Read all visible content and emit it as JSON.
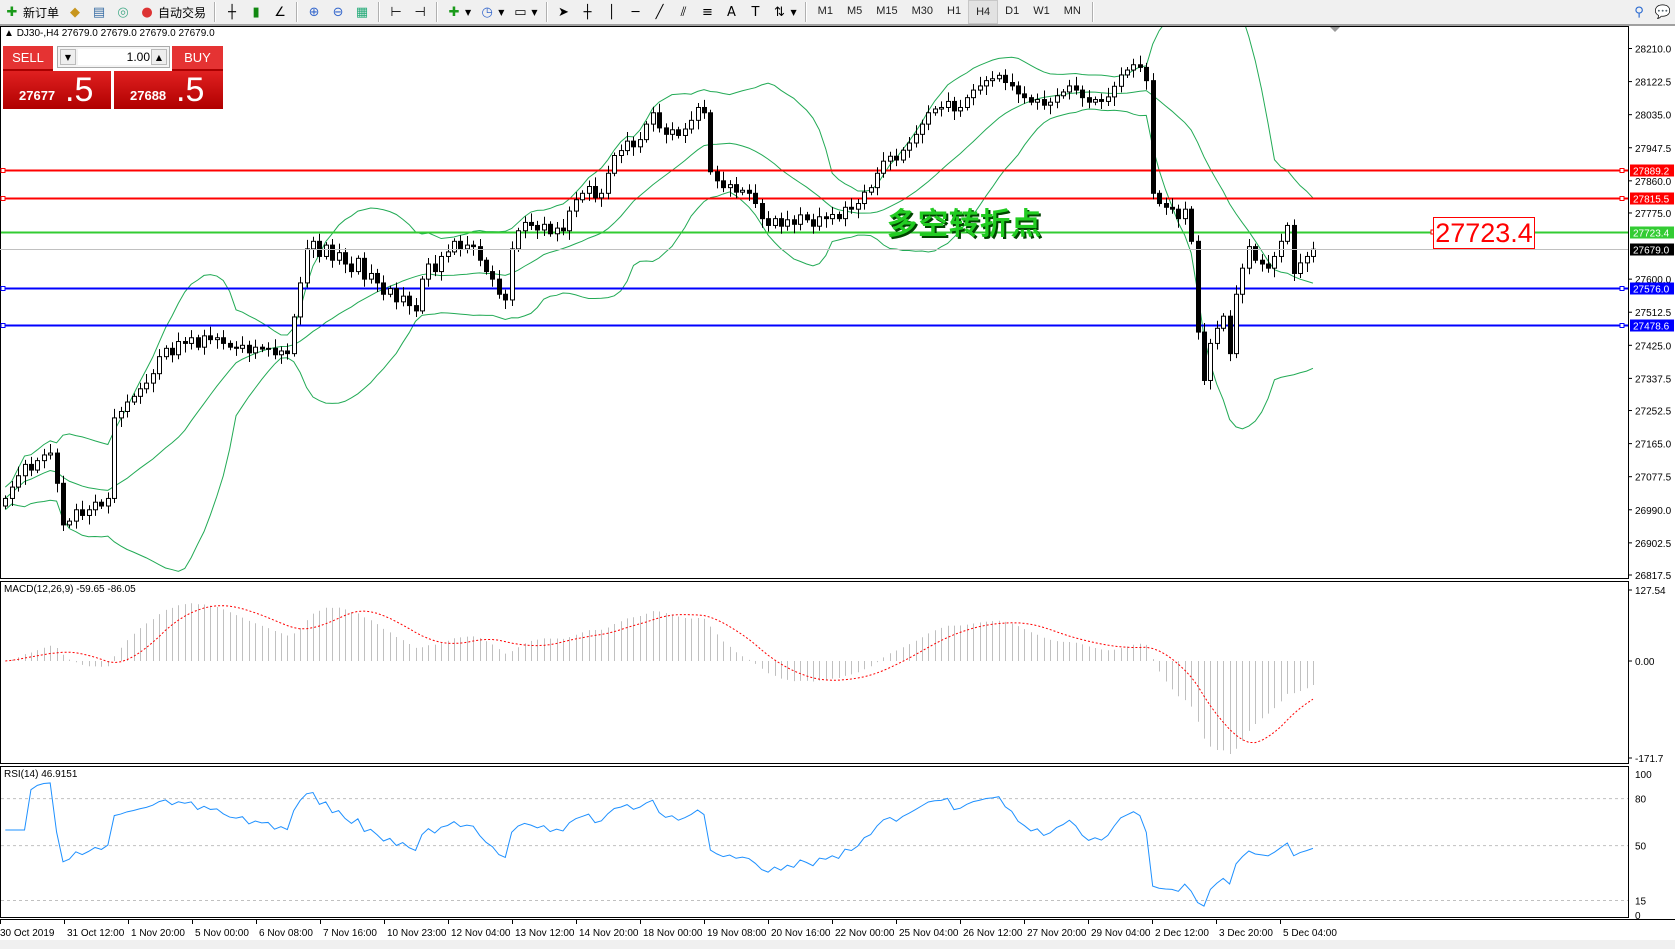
{
  "toolbar": {
    "new_order": "新订单",
    "auto_trading": "自动交易",
    "timeframes": [
      "M1",
      "M5",
      "M15",
      "M30",
      "H1",
      "H4",
      "D1",
      "W1",
      "MN"
    ],
    "active_timeframe": "H4"
  },
  "chart_title": "DJ30-,H4  27679.0 27679.0 27679.0 27679.0",
  "trade_panel": {
    "sell_label": "SELL",
    "buy_label": "BUY",
    "lot": "1.00",
    "sell_price_main": "27677",
    "sell_price_frac": ".5",
    "buy_price_main": "27688",
    "buy_price_frac": ".5"
  },
  "annotation": "多空转折点",
  "price_label_box": "27723.4",
  "colors": {
    "up": "#ffffff",
    "down": "#000000",
    "bands": "#22aa55",
    "red_line": "#ff0000",
    "blue_line": "#0000ff",
    "green_line": "#33cc33",
    "current": "#c0c0c0",
    "rsi": "#1e90ff",
    "macd_hist": "#c0c0c0",
    "macd_signal": "#ff0000"
  },
  "chart_data": {
    "type": "candlestick",
    "symbol": "DJ30-",
    "timeframe": "H4",
    "y_ticks": [
      "28210.0",
      "28122.5",
      "28035.0",
      "27947.5",
      "27860.0",
      "27775.0",
      "27600.0",
      "27512.5",
      "27425.0",
      "27337.5",
      "27252.5",
      "27165.0",
      "27077.5",
      "26990.0",
      "26902.5",
      "26817.5"
    ],
    "ylim": [
      26817.5,
      28210.0
    ],
    "x_labels": [
      "30 Oct 2019",
      "31 Oct 12:00",
      "1 Nov 20:00",
      "5 Nov 00:00",
      "6 Nov 08:00",
      "7 Nov 16:00",
      "10 Nov 23:00",
      "12 Nov 04:00",
      "13 Nov 12:00",
      "14 Nov 20:00",
      "18 Nov 00:00",
      "19 Nov 08:00",
      "20 Nov 16:00",
      "22 Nov 00:00",
      "25 Nov 04:00",
      "26 Nov 12:00",
      "27 Nov 20:00",
      "29 Nov 04:00",
      "2 Dec 12:00",
      "3 Dec 20:00",
      "5 Dec 04:00"
    ],
    "closes": [
      27020,
      27050,
      27080,
      27110,
      27095,
      27120,
      27135,
      27140,
      27060,
      26950,
      26960,
      26990,
      26975,
      26990,
      27010,
      27000,
      27020,
      27233,
      27250,
      27275,
      27290,
      27310,
      27325,
      27350,
      27395,
      27417,
      27400,
      27435,
      27430,
      27445,
      27420,
      27450,
      27440,
      27445,
      27430,
      27420,
      27417,
      27425,
      27405,
      27420,
      27415,
      27417,
      27400,
      27410,
      27403,
      27500,
      27590,
      27680,
      27700,
      27660,
      27690,
      27650,
      27670,
      27640,
      27620,
      27655,
      27600,
      27615,
      27590,
      27560,
      27575,
      27540,
      27555,
      27530,
      27516,
      27600,
      27640,
      27620,
      27660,
      27672,
      27700,
      27680,
      27690,
      27686,
      27650,
      27620,
      27600,
      27560,
      27545,
      27680,
      27728,
      27750,
      27742,
      27730,
      27745,
      27720,
      27735,
      27728,
      27780,
      27810,
      27827,
      27845,
      27815,
      27827,
      27880,
      27927,
      27940,
      27965,
      27950,
      27969,
      28010,
      28040,
      28000,
      27983,
      27995,
      27980,
      27997,
      28020,
      28054,
      28040,
      27884,
      27860,
      27842,
      27850,
      27830,
      27835,
      27827,
      27800,
      27760,
      27742,
      27760,
      27740,
      27757,
      27745,
      27770,
      27757,
      27740,
      27765,
      27760,
      27771,
      27760,
      27790,
      27785,
      27800,
      27830,
      27842,
      27880,
      27912,
      27925,
      27915,
      27941,
      27960,
      27983,
      28010,
      28040,
      28050,
      28054,
      28070,
      28045,
      28054,
      28080,
      28100,
      28111,
      28125,
      28130,
      28139,
      28120,
      28111,
      28090,
      28080,
      28068,
      28075,
      28060,
      28068,
      28085,
      28095,
      28111,
      28100,
      28080,
      28068,
      28075,
      28070,
      28082,
      28110,
      28140,
      28153,
      28167,
      28160,
      28125,
      27827,
      27800,
      27790,
      27785,
      27760,
      27785,
      27700,
      27460,
      27332,
      27430,
      27470,
      27502,
      27403,
      27560,
      27629,
      27686,
      27650,
      27640,
      27629,
      27660,
      27700,
      27742,
      27615,
      27643,
      27660,
      27679
    ],
    "horizontal_lines": [
      {
        "price": 27889.2,
        "label": "27889.2",
        "color": "#ff0000"
      },
      {
        "price": 27815.5,
        "label": "27815.5",
        "color": "#ff0000"
      },
      {
        "price": 27723.4,
        "label": "27723.4",
        "color": "#33cc33"
      },
      {
        "price": 27679.0,
        "label": "27679.0",
        "color": "#000000"
      },
      {
        "price": 27576.0,
        "label": "27576.0",
        "color": "#0000ff"
      },
      {
        "price": 27478.6,
        "label": "27478.6",
        "color": "#0000ff"
      }
    ],
    "indicators": {
      "bollinger": {
        "period": 20,
        "deviation": 2
      },
      "macd": {
        "label": "MACD(12,26,9) -59.65 -86.05",
        "ticks": [
          "127.54",
          "0.00",
          "-171.7"
        ],
        "range": [
          -171.7,
          127.54
        ]
      },
      "rsi": {
        "label": "RSI(14) 46.9151",
        "ticks": [
          "100",
          "80",
          "50",
          "15",
          "0"
        ],
        "levels": [
          80,
          50,
          15
        ]
      }
    }
  }
}
